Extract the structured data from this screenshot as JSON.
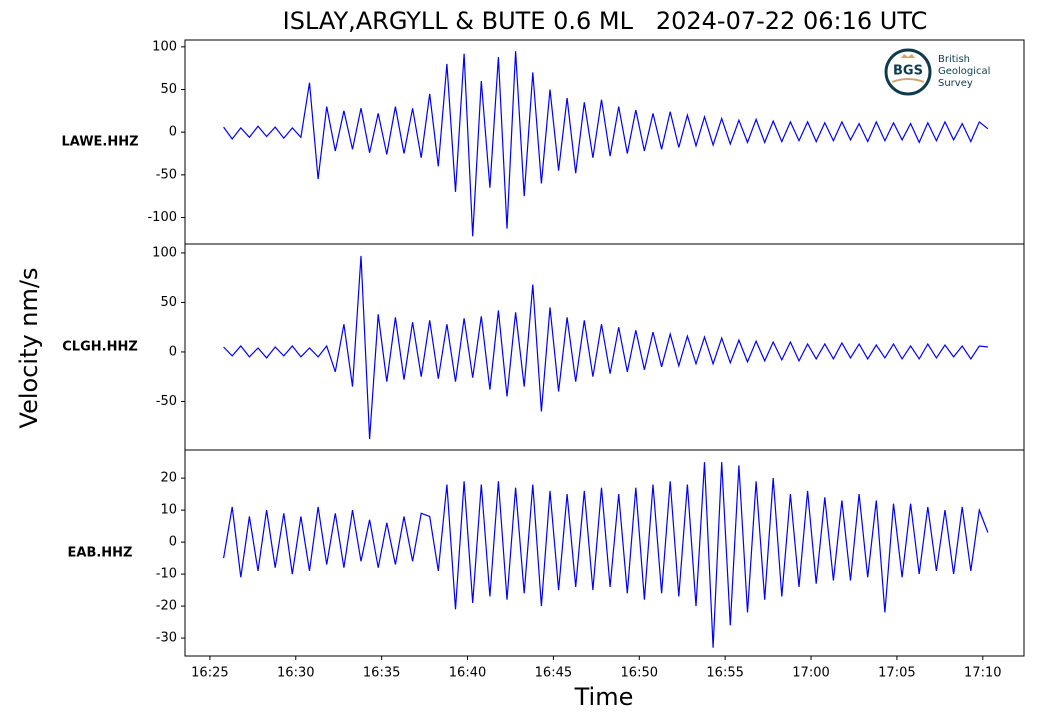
{
  "chart_data": {
    "type": "line",
    "title": "ISLAY,ARGYLL & BUTE 0.6 ML   2024-07-22 06:16 UTC",
    "xlabel": "Time",
    "ylabel": "Velocity nm/s",
    "x": [
      25.8,
      26.3,
      26.8,
      27.3,
      27.8,
      28.3,
      28.8,
      29.3,
      29.8,
      30.3,
      30.8,
      31.3,
      31.8,
      32.3,
      32.8,
      33.3,
      33.8,
      34.3,
      34.8,
      35.3,
      35.8,
      36.3,
      36.8,
      37.3,
      37.8,
      38.3,
      38.8,
      39.3,
      39.8,
      40.3,
      40.8,
      41.3,
      41.8,
      42.3,
      42.8,
      43.3,
      43.8,
      44.3,
      44.8,
      45.3,
      45.8,
      46.3,
      46.8,
      47.3,
      47.8,
      48.3,
      48.8,
      49.3,
      49.8,
      50.3,
      50.8,
      51.3,
      51.8,
      52.3,
      52.8,
      53.3,
      53.8,
      54.3,
      54.8,
      55.3,
      55.8,
      56.3,
      56.8,
      57.3,
      57.8,
      58.3,
      58.8,
      59.3,
      59.8,
      60.3,
      60.8,
      61.3,
      61.8,
      62.3,
      62.8,
      63.3,
      63.8,
      64.3,
      64.8,
      65.3,
      65.8,
      66.3,
      66.8,
      67.3,
      67.8,
      68.3,
      68.8,
      69.3,
      69.8,
      70.3
    ],
    "xlim": [
      23.55,
      72.4
    ],
    "xticks": [
      {
        "value": 25,
        "label": "16:25"
      },
      {
        "value": 30,
        "label": "16:30"
      },
      {
        "value": 35,
        "label": "16:35"
      },
      {
        "value": 40,
        "label": "16:40"
      },
      {
        "value": 45,
        "label": "16:45"
      },
      {
        "value": 50,
        "label": "16:50"
      },
      {
        "value": 55,
        "label": "16:55"
      },
      {
        "value": 60,
        "label": "17:00"
      },
      {
        "value": 65,
        "label": "17:05"
      },
      {
        "value": 70,
        "label": "17:10"
      }
    ],
    "series": [
      {
        "name": "LAWE.HHZ",
        "color": "#0000ff",
        "ylim": [
          -131,
          108
        ],
        "yticks": [
          100,
          50,
          0,
          -50,
          -100
        ],
        "values": [
          6,
          -8,
          5,
          -6,
          7,
          -5,
          6,
          -7,
          5,
          -6,
          58,
          -55,
          30,
          -22,
          25,
          -20,
          28,
          -24,
          22,
          -26,
          30,
          -25,
          28,
          -30,
          45,
          -40,
          80,
          -70,
          92,
          -122,
          60,
          -65,
          88,
          -113,
          95,
          -75,
          70,
          -60,
          50,
          -45,
          40,
          -48,
          35,
          -30,
          38,
          -28,
          30,
          -25,
          26,
          -22,
          22,
          -20,
          24,
          -18,
          20,
          -16,
          18,
          -15,
          16,
          -14,
          14,
          -12,
          15,
          -12,
          13,
          -11,
          12,
          -10,
          12,
          -11,
          11,
          -10,
          12,
          -9,
          10,
          -11,
          12,
          -10,
          11,
          -9,
          10,
          -12,
          11,
          -10,
          12,
          -9,
          10,
          -11,
          12,
          4
        ]
      },
      {
        "name": "CLGH.HHZ",
        "color": "#0000ff",
        "ylim": [
          -99,
          109
        ],
        "yticks": [
          100,
          50,
          0,
          -50
        ],
        "values": [
          5,
          -4,
          6,
          -5,
          4,
          -6,
          5,
          -4,
          6,
          -5,
          4,
          -5,
          6,
          -20,
          28,
          -35,
          97,
          -88,
          38,
          -30,
          35,
          -28,
          30,
          -25,
          32,
          -27,
          28,
          -30,
          34,
          -26,
          36,
          -38,
          42,
          -45,
          40,
          -35,
          68,
          -60,
          45,
          -40,
          35,
          -30,
          32,
          -25,
          28,
          -22,
          25,
          -20,
          22,
          -18,
          20,
          -15,
          18,
          -14,
          16,
          -12,
          15,
          -12,
          14,
          -11,
          12,
          -10,
          11,
          -9,
          10,
          -8,
          10,
          -9,
          8,
          -7,
          8,
          -7,
          9,
          -6,
          8,
          -7,
          7,
          -6,
          8,
          -7,
          6,
          -7,
          8,
          -6,
          7,
          -5,
          6,
          -7,
          6,
          5
        ]
      },
      {
        "name": "EAB.HHZ",
        "color": "#0000ff",
        "ylim": [
          -35.6,
          28.8
        ],
        "yticks": [
          20,
          10,
          0,
          -10,
          -20,
          -30
        ],
        "values": [
          -5,
          11,
          -11,
          8,
          -9,
          10,
          -8,
          9,
          -10,
          8,
          -9,
          11,
          -7,
          9,
          -8,
          10,
          -6,
          7,
          -8,
          6,
          -7,
          8,
          -6,
          9,
          8,
          -9,
          18,
          -21,
          19,
          -19,
          18,
          -17,
          19,
          -18,
          17,
          -16,
          18,
          -20,
          16,
          -15,
          15,
          -14,
          16,
          -15,
          17,
          -14,
          15,
          -16,
          17,
          -18,
          18,
          -16,
          19,
          -17,
          18,
          -20,
          25,
          -33,
          25,
          -26,
          24,
          -22,
          19,
          -18,
          20,
          -17,
          15,
          -14,
          16,
          -13,
          14,
          -12,
          13,
          -12,
          15,
          -11,
          13,
          -22,
          12,
          -11,
          12,
          -10,
          11,
          -9,
          10,
          -10,
          11,
          -9,
          10,
          3
        ]
      }
    ]
  },
  "logo": {
    "abbr": "BGS",
    "lines": [
      "British",
      "Geological",
      "Survey"
    ]
  }
}
